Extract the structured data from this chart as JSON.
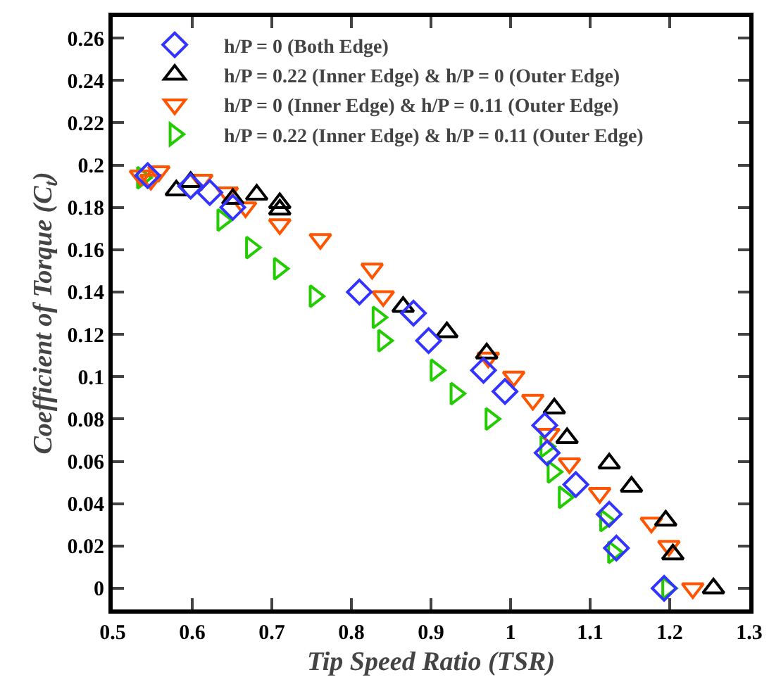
{
  "chart_data": {
    "type": "scatter",
    "xlabel": "Tip Speed Ratio (TSR)",
    "ylabel": "Coefficient of Torque (C$_{t}$)",
    "xlim": [
      0.5,
      1.3
    ],
    "xticks": [
      0.5,
      0.6,
      0.7,
      0.8,
      0.9,
      1,
      1.1,
      1.2,
      1.3
    ],
    "ylim": [
      -0.01,
      0.27
    ],
    "yticks": [
      0,
      0.02,
      0.04,
      0.06,
      0.08,
      0.1,
      0.12,
      0.14,
      0.16,
      0.18,
      0.2,
      0.22,
      0.24,
      0.26
    ],
    "grid": false,
    "legend": "top left",
    "series": [
      {
        "name": "h/P = 0 (Both Edge)",
        "color": "#3333ff",
        "marker": "diamond",
        "x": [
          0.544,
          0.598,
          0.622,
          0.651,
          0.81,
          0.878,
          0.897,
          0.966,
          0.993,
          1.043,
          1.046,
          1.082,
          1.124,
          1.133,
          1.193
        ],
        "values": [
          0.195,
          0.19,
          0.187,
          0.18,
          0.14,
          0.13,
          0.117,
          0.103,
          0.093,
          0.077,
          0.064,
          0.049,
          0.035,
          0.019,
          0
        ]
      },
      {
        "name": "h/P = 0.22 (Inner Edge) & h/P = 0 (Outer Edge)",
        "color": "#000000",
        "marker": "triangle",
        "x": [
          0.58,
          0.598,
          0.651,
          0.681,
          0.71,
          0.71,
          0.865,
          0.92,
          0.97,
          1.055,
          1.071,
          1.124,
          1.152,
          1.195,
          1.204,
          1.255
        ],
        "values": [
          0.188,
          0.192,
          0.184,
          0.186,
          0.182,
          0.179,
          0.133,
          0.121,
          0.111,
          0.085,
          0.071,
          0.059,
          0.048,
          0.032,
          0.016,
          0
        ]
      },
      {
        "name": "h/P = 0 (Inner Edge) & h/P = 0.11 (Outer Edge)",
        "color": "#ff5500",
        "marker": "triangle-down",
        "x": [
          0.535,
          0.548,
          0.558,
          0.612,
          0.644,
          0.667,
          0.71,
          0.761,
          0.826,
          0.84,
          0.972,
          1.004,
          1.028,
          1.048,
          1.074,
          1.112,
          1.177,
          1.199,
          1.229
        ],
        "values": [
          0.195,
          0.193,
          0.197,
          0.193,
          0.187,
          0.18,
          0.172,
          0.165,
          0.151,
          0.138,
          0.109,
          0.1,
          0.089,
          0.073,
          0.059,
          0.045,
          0.031,
          0.02,
          0
        ]
      },
      {
        "name": "h/P = 0.22 (Inner Edge) & h/P = 0.11 (Outer Edge)",
        "color": "#22cc00",
        "marker": "triangle-right",
        "x": [
          0.537,
          0.638,
          0.674,
          0.709,
          0.754,
          0.833,
          0.84,
          0.906,
          0.931,
          0.975,
          1.044,
          1.053,
          1.067,
          1.119,
          1.129,
          1.197
        ],
        "values": [
          0.194,
          0.174,
          0.161,
          0.151,
          0.138,
          0.128,
          0.117,
          0.103,
          0.092,
          0.08,
          0.067,
          0.055,
          0.043,
          0.032,
          0.017,
          0
        ]
      }
    ]
  }
}
